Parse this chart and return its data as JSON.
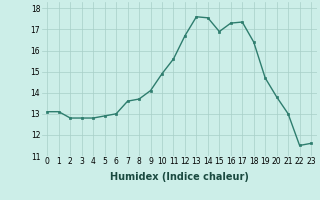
{
  "x": [
    0,
    1,
    2,
    3,
    4,
    5,
    6,
    7,
    8,
    9,
    10,
    11,
    12,
    13,
    14,
    15,
    16,
    17,
    18,
    19,
    20,
    21,
    22,
    23
  ],
  "y": [
    13.1,
    13.1,
    12.8,
    12.8,
    12.8,
    12.9,
    13.0,
    13.6,
    13.7,
    14.1,
    14.9,
    15.6,
    16.7,
    17.6,
    17.55,
    16.9,
    17.3,
    17.35,
    16.4,
    14.7,
    13.8,
    13.0,
    11.5,
    11.6
  ],
  "line_color": "#2e7d6e",
  "marker": "s",
  "marker_size": 2.0,
  "bg_color": "#cceee8",
  "grid_color": "#a8cfc8",
  "xlabel": "Humidex (Indice chaleur)",
  "ylim": [
    11,
    18.3
  ],
  "xlim": [
    -0.5,
    23.5
  ],
  "yticks": [
    11,
    12,
    13,
    14,
    15,
    16,
    17,
    18
  ],
  "xticks": [
    0,
    1,
    2,
    3,
    4,
    5,
    6,
    7,
    8,
    9,
    10,
    11,
    12,
    13,
    14,
    15,
    16,
    17,
    18,
    19,
    20,
    21,
    22,
    23
  ],
  "tick_fontsize": 5.5,
  "xlabel_fontsize": 7.0,
  "line_width": 1.0
}
